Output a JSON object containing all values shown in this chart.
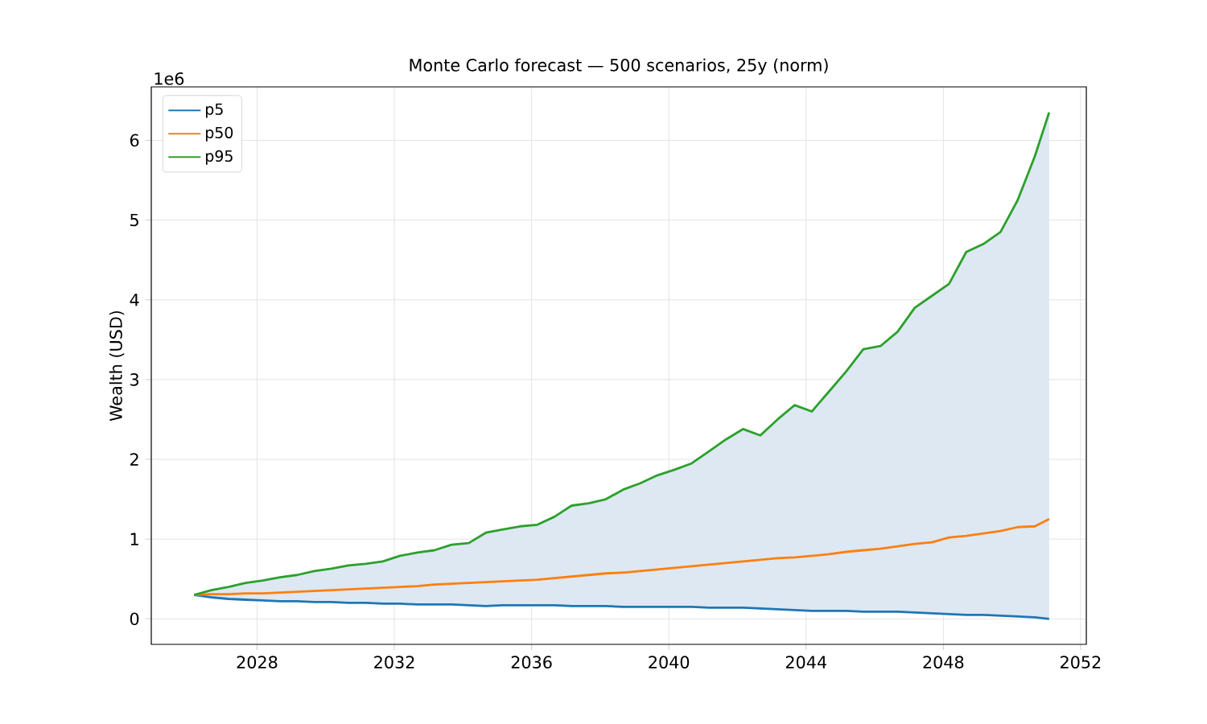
{
  "chart_data": {
    "type": "line",
    "title": "Monte Carlo forecast — 500 scenarios, 25y (norm)",
    "ylabel": "Wealth (USD)",
    "annotations": [
      "1e6"
    ],
    "x": [
      "2026-03",
      "2026-09",
      "2027-03",
      "2027-09",
      "2028-03",
      "2028-09",
      "2029-03",
      "2029-09",
      "2030-03",
      "2030-09",
      "2031-03",
      "2031-09",
      "2032-03",
      "2032-09",
      "2033-03",
      "2033-09",
      "2034-03",
      "2034-09",
      "2035-03",
      "2035-09",
      "2036-03",
      "2036-09",
      "2037-03",
      "2037-09",
      "2038-03",
      "2038-09",
      "2039-03",
      "2039-09",
      "2040-03",
      "2040-09",
      "2041-03",
      "2041-09",
      "2042-03",
      "2042-09",
      "2043-03",
      "2043-09",
      "2044-03",
      "2044-09",
      "2045-03",
      "2045-09",
      "2046-03",
      "2046-09",
      "2047-03",
      "2047-09",
      "2048-03",
      "2048-09",
      "2049-03",
      "2049-09",
      "2050-03",
      "2050-09",
      "2051-02"
    ],
    "series": [
      {
        "name": "p5",
        "color": "#1f77b4",
        "values": [
          0.3,
          0.27,
          0.25,
          0.24,
          0.23,
          0.22,
          0.22,
          0.21,
          0.21,
          0.2,
          0.2,
          0.19,
          0.19,
          0.18,
          0.18,
          0.18,
          0.17,
          0.16,
          0.17,
          0.17,
          0.17,
          0.17,
          0.16,
          0.16,
          0.16,
          0.15,
          0.15,
          0.15,
          0.15,
          0.15,
          0.14,
          0.14,
          0.14,
          0.13,
          0.12,
          0.11,
          0.1,
          0.1,
          0.1,
          0.09,
          0.09,
          0.09,
          0.08,
          0.07,
          0.06,
          0.05,
          0.05,
          0.04,
          0.03,
          0.02,
          0
        ]
      },
      {
        "name": "p50",
        "color": "#ff7f0e",
        "values": [
          0.3,
          0.31,
          0.31,
          0.32,
          0.32,
          0.33,
          0.34,
          0.35,
          0.36,
          0.37,
          0.38,
          0.39,
          0.4,
          0.41,
          0.43,
          0.44,
          0.45,
          0.46,
          0.47,
          0.48,
          0.49,
          0.51,
          0.53,
          0.55,
          0.57,
          0.58,
          0.6,
          0.62,
          0.64,
          0.66,
          0.68,
          0.7,
          0.72,
          0.74,
          0.76,
          0.77,
          0.79,
          0.81,
          0.84,
          0.86,
          0.88,
          0.91,
          0.94,
          0.96,
          1.02,
          1.04,
          1.07,
          1.1,
          1.15,
          1.16,
          1.25
        ],
        "lower": [
          0.3,
          0.27,
          0.25,
          0.24,
          0.23,
          0.22,
          0.22,
          0.21,
          0.21,
          0.2,
          0.2,
          0.19,
          0.19,
          0.18,
          0.18,
          0.18,
          0.17,
          0.16,
          0.17,
          0.17,
          0.17,
          0.17,
          0.16,
          0.16,
          0.16,
          0.15,
          0.15,
          0.15,
          0.15,
          0.15,
          0.14,
          0.14,
          0.14,
          0.13,
          0.12,
          0.11,
          0.1,
          0.1,
          0.1,
          0.09,
          0.09,
          0.09,
          0.08,
          0.07,
          0.06,
          0.05,
          0.05,
          0.04,
          0.03,
          0.02,
          0
        ],
        "upper": [
          0.3,
          0.36,
          0.4,
          0.45,
          0.48,
          0.52,
          0.55,
          0.6,
          0.63,
          0.67,
          0.69,
          0.72,
          0.79,
          0.83,
          0.86,
          0.93,
          0.95,
          1.08,
          1.12,
          1.16,
          1.18,
          1.28,
          1.42,
          1.45,
          1.5,
          1.62,
          1.7,
          1.8,
          1.87,
          1.95,
          2.1,
          2.25,
          2.38,
          2.3,
          2.5,
          2.68,
          2.6,
          2.85,
          3.1,
          3.38,
          3.42,
          3.6,
          3.9,
          4.05,
          4.2,
          4.6,
          4.7,
          4.85,
          5.25,
          5.8,
          6.35
        ]
      },
      {
        "name": "p95",
        "color": "#2ca02c",
        "values": [
          0.3,
          0.36,
          0.4,
          0.45,
          0.48,
          0.52,
          0.55,
          0.6,
          0.63,
          0.67,
          0.69,
          0.72,
          0.79,
          0.83,
          0.86,
          0.93,
          0.95,
          1.08,
          1.12,
          1.16,
          1.18,
          1.28,
          1.42,
          1.45,
          1.5,
          1.62,
          1.7,
          1.8,
          1.87,
          1.95,
          2.1,
          2.25,
          2.38,
          2.3,
          2.5,
          2.68,
          2.6,
          2.85,
          3.1,
          3.38,
          3.42,
          3.6,
          3.9,
          4.05,
          4.2,
          4.6,
          4.7,
          4.85,
          5.25,
          5.8,
          6.35
        ]
      }
    ],
    "xlim": [
      "2024-12",
      "2052-03"
    ],
    "xticks": [
      "2028",
      "2032",
      "2036",
      "2040",
      "2044",
      "2048",
      "2052"
    ],
    "ylim": [
      -0.32,
      6.67
    ],
    "yticks": [
      0,
      1,
      2,
      3,
      4,
      5,
      6
    ],
    "grid": true,
    "legend": "top left"
  }
}
